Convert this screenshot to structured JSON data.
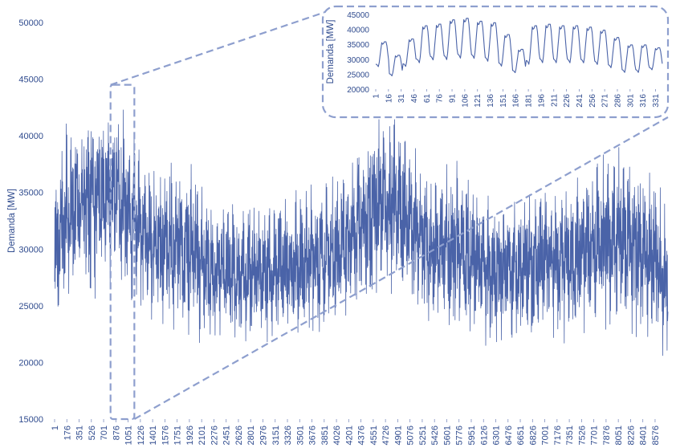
{
  "chart_data": [
    {
      "type": "line",
      "title": "",
      "xlabel": "",
      "ylabel": "Demanda [MW]",
      "ylim": [
        15000,
        50000
      ],
      "yticks": [
        15000,
        20000,
        25000,
        30000,
        35000,
        40000,
        45000,
        50000
      ],
      "x_range": [
        1,
        8760
      ],
      "xticks": [
        1,
        176,
        351,
        526,
        701,
        876,
        1051,
        1226,
        1401,
        1576,
        1751,
        1926,
        2101,
        2276,
        2451,
        2626,
        2801,
        2976,
        3151,
        3326,
        3501,
        3676,
        3851,
        4026,
        4201,
        4376,
        4551,
        4726,
        4901,
        5076,
        5251,
        5426,
        5601,
        5776,
        5951,
        6126,
        6301,
        6476,
        6651,
        6826,
        7001,
        7176,
        7351,
        7526,
        7701,
        7876,
        8051,
        8226,
        8401,
        8576
      ],
      "grid": false,
      "legend": "none",
      "color": "#4a63a8",
      "highlight_window_hours": [
        800,
        1140
      ],
      "series_envelope": {
        "x": [
          1,
          176,
          351,
          526,
          701,
          876,
          1051,
          1226,
          1401,
          1576,
          1751,
          1926,
          2101,
          2276,
          2451,
          2626,
          2801,
          2976,
          3151,
          3326,
          3501,
          3676,
          3851,
          4026,
          4201,
          4376,
          4551,
          4726,
          4901,
          5076,
          5251,
          5426,
          5601,
          5776,
          5951,
          6126,
          6301,
          6476,
          6651,
          6826,
          7001,
          7176,
          7351,
          7526,
          7701,
          7876,
          8051,
          8226,
          8401,
          8576,
          8760
        ],
        "max": [
          37000,
          41500,
          42500,
          43500,
          42500,
          43500,
          41500,
          38500,
          37500,
          37500,
          38500,
          38000,
          35500,
          35500,
          34500,
          34000,
          34500,
          34000,
          34500,
          35000,
          35500,
          36000,
          36000,
          37000,
          38000,
          40000,
          42000,
          42500,
          42000,
          40500,
          37500,
          36500,
          37500,
          38500,
          36500,
          35500,
          35000,
          34500,
          35000,
          35500,
          36000,
          35500,
          36000,
          37000,
          38500,
          39500,
          39000,
          38500,
          38000,
          36500,
          34000
        ],
        "min": [
          21500,
          24500,
          25500,
          25500,
          26000,
          27000,
          25500,
          24000,
          23500,
          22500,
          22500,
          22000,
          21500,
          21000,
          21500,
          21000,
          21500,
          22000,
          21500,
          22000,
          22000,
          22000,
          22500,
          23000,
          23500,
          24000,
          25000,
          25500,
          25500,
          24500,
          23500,
          23000,
          22500,
          22000,
          21500,
          21500,
          21500,
          22000,
          21500,
          21500,
          22000,
          22000,
          21500,
          22000,
          22000,
          22500,
          22500,
          22000,
          21500,
          21500,
          20000
        ]
      }
    },
    {
      "type": "line",
      "title": "",
      "xlabel": "",
      "ylabel": "Demanda [MW]",
      "ylim": [
        20000,
        45000
      ],
      "yticks": [
        20000,
        25000,
        30000,
        35000,
        40000,
        45000
      ],
      "x_range": [
        1,
        340
      ],
      "xticks": [
        1,
        16,
        31,
        46,
        61,
        76,
        91,
        106,
        121,
        136,
        151,
        166,
        181,
        196,
        211,
        226,
        241,
        256,
        271,
        286,
        301,
        316,
        331
      ],
      "grid": false,
      "legend": "none",
      "color": "#4a63a8",
      "daily_profile": {
        "peak": [
          36000,
          31500,
          37000,
          41500,
          42000,
          43500,
          44000,
          43000,
          42500,
          38500,
          33500,
          41500,
          42000,
          41500,
          41500,
          41000,
          40000,
          37500,
          35000,
          35000,
          34000
        ],
        "base": [
          27000,
          24000,
          27000,
          28000,
          29000,
          29000,
          29500,
          29500,
          28500,
          27000,
          25000,
          27500,
          28000,
          28000,
          28000,
          28000,
          27500,
          26500,
          25000,
          25000,
          26000
        ]
      }
    }
  ]
}
